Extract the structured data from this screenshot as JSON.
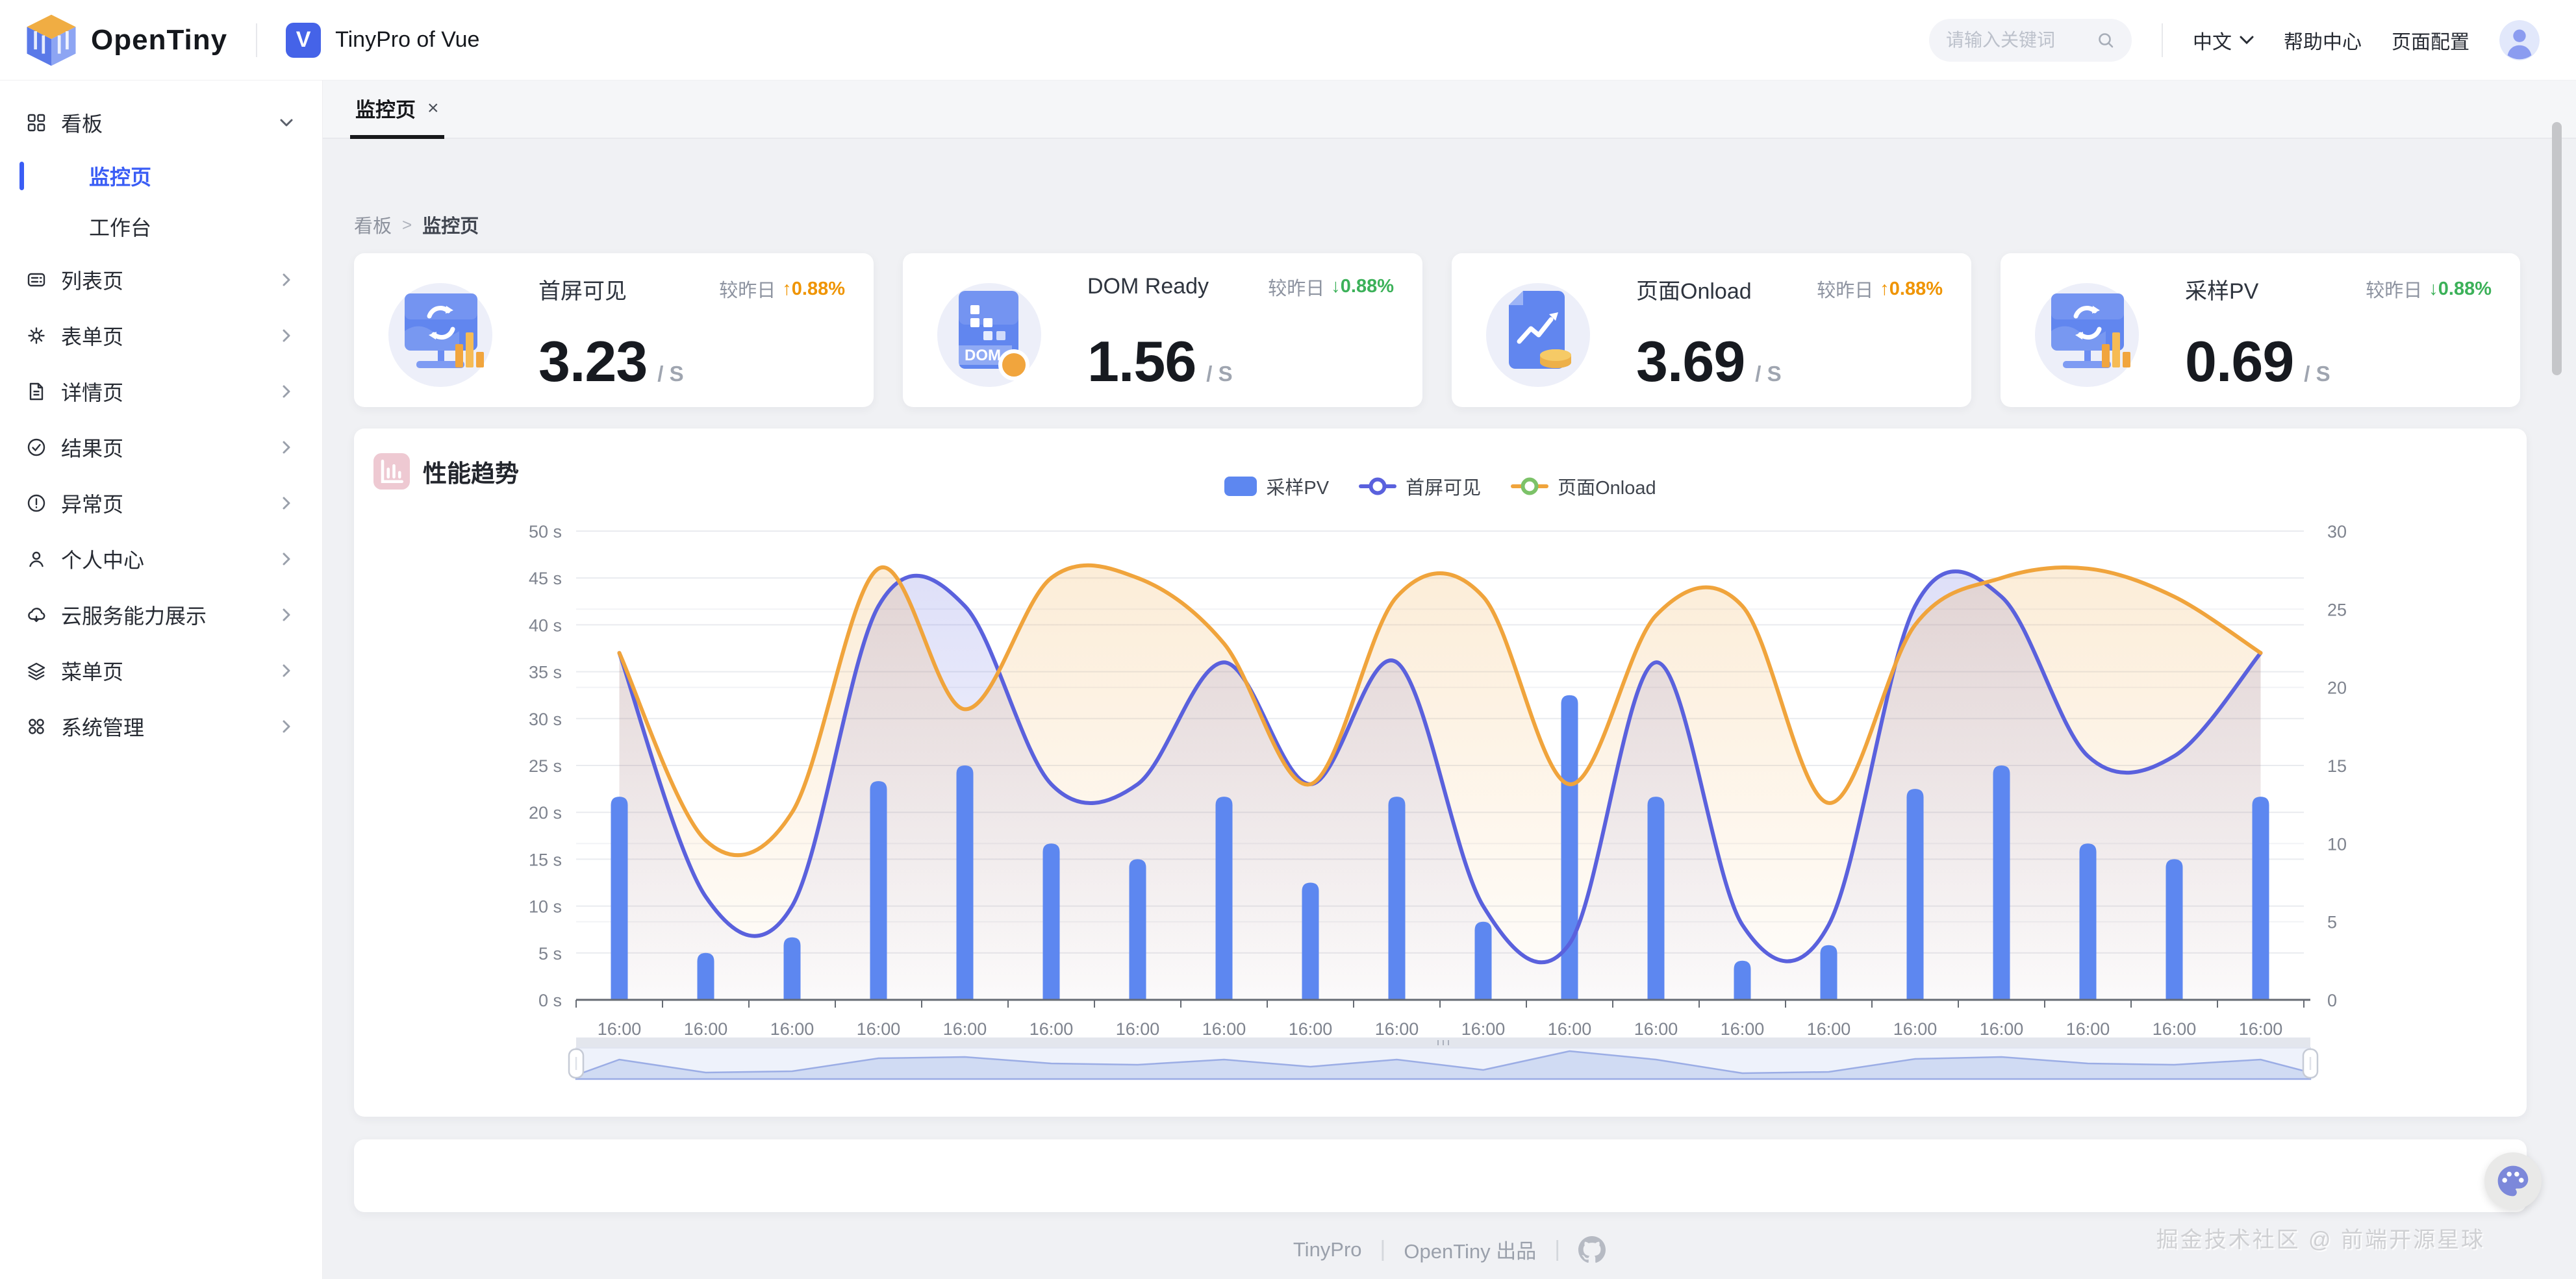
{
  "header": {
    "brand": "OpenTiny",
    "logo_letter": "V",
    "app_title": "TinyPro of Vue",
    "search_placeholder": "请输入关键词",
    "language": "中文",
    "help": "帮助中心",
    "page_config": "页面配置"
  },
  "sidebar": {
    "items": [
      {
        "label": "看板",
        "icon": "dashboard-icon",
        "expanded": true,
        "children": [
          {
            "label": "监控页",
            "active": true
          },
          {
            "label": "工作台",
            "active": false
          }
        ]
      },
      {
        "label": "列表页",
        "icon": "list-icon"
      },
      {
        "label": "表单页",
        "icon": "gear-icon"
      },
      {
        "label": "详情页",
        "icon": "document-icon"
      },
      {
        "label": "结果页",
        "icon": "check-circle-icon"
      },
      {
        "label": "异常页",
        "icon": "warning-circle-icon"
      },
      {
        "label": "个人中心",
        "icon": "user-icon"
      },
      {
        "label": "云服务能力展示",
        "icon": "cloud-icon"
      },
      {
        "label": "菜单页",
        "icon": "layers-icon"
      },
      {
        "label": "系统管理",
        "icon": "apps-icon"
      }
    ]
  },
  "tabs": [
    {
      "label": "监控页",
      "closable": true,
      "active": true
    }
  ],
  "breadcrumb": [
    "看板",
    "监控页"
  ],
  "stat_cards": [
    {
      "title": "首屏可见",
      "compare_label": "较昨日",
      "delta": "0.88%",
      "direction": "up",
      "value": "3.23",
      "unit": "/ S",
      "icon": "monitor-refresh"
    },
    {
      "title": "DOM Ready",
      "compare_label": "较昨日",
      "delta": "0.88%",
      "direction": "down",
      "value": "1.56",
      "unit": "/ S",
      "icon": "dom-blocks"
    },
    {
      "title": "页面Onload",
      "compare_label": "较昨日",
      "delta": "0.88%",
      "direction": "up",
      "value": "3.69",
      "unit": "/ S",
      "icon": "page-trend"
    },
    {
      "title": "采样PV",
      "compare_label": "较昨日",
      "delta": "0.88%",
      "direction": "down",
      "value": "0.69",
      "unit": "/ S",
      "icon": "monitor-refresh"
    }
  ],
  "chart_card": {
    "title": "性能趋势"
  },
  "chart_data": {
    "type": "bar+line",
    "title": "性能趋势",
    "categories": [
      "16:00",
      "16:00",
      "16:00",
      "16:00",
      "16:00",
      "16:00",
      "16:00",
      "16:00",
      "16:00",
      "16:00",
      "16:00",
      "16:00",
      "16:00",
      "16:00",
      "16:00",
      "16:00",
      "16:00",
      "16:00",
      "16:00",
      "16:00"
    ],
    "series": [
      {
        "name": "采样PV",
        "type": "bar",
        "axis": "right",
        "color": "#5d87f0",
        "values": [
          13,
          3,
          4,
          14,
          15,
          10,
          9,
          13,
          7.5,
          13,
          5,
          19.5,
          13,
          2.5,
          3.5,
          13.5,
          15,
          10,
          9,
          13
        ]
      },
      {
        "name": "首屏可见",
        "type": "line",
        "axis": "left",
        "unit": "s",
        "color": "#5a61dd",
        "values": [
          37,
          11,
          10,
          42,
          42,
          23,
          23,
          36,
          23,
          36,
          10,
          6,
          36,
          8,
          8,
          42,
          43,
          26,
          26,
          37
        ]
      },
      {
        "name": "页面Onload",
        "type": "line",
        "axis": "left",
        "unit": "s",
        "color": "#f0a43c",
        "values": [
          37,
          17,
          20,
          46,
          31,
          45,
          45,
          38,
          23,
          43,
          43,
          23,
          41,
          42,
          21,
          40,
          45,
          46,
          43,
          37
        ]
      }
    ],
    "y_left": {
      "min": 0,
      "max": 50,
      "step": 5,
      "suffix": " s"
    },
    "y_right": {
      "min": 0,
      "max": 30,
      "step": 5,
      "suffix": ""
    },
    "legend": [
      {
        "label": "采样PV",
        "marker": "bar",
        "color": "#5d87f0"
      },
      {
        "label": "首屏可见",
        "marker": "line-circle",
        "line_color": "#5a61dd",
        "circle_color": "#5a61dd"
      },
      {
        "label": "页面Onload",
        "marker": "line-circle",
        "line_color": "#f0a43c",
        "circle_color": "#7cc268"
      }
    ],
    "legend_position": "top-center",
    "grid": true,
    "has_datazoom_slider": true
  },
  "footer": {
    "brand": "TinyPro",
    "producer": "OpenTiny 出品"
  },
  "watermark": "掘金技术社区 @ 前端开源星球",
  "colors": {
    "accent": "#3a5df5",
    "brand_blue": "#4563e8",
    "bar": "#5d87f0",
    "line_first_screen": "#5a61dd",
    "line_onload": "#f0a43c",
    "delta_up": "#ef9400",
    "delta_down": "#3cb159",
    "legend_circle_green": "#7cc268"
  }
}
